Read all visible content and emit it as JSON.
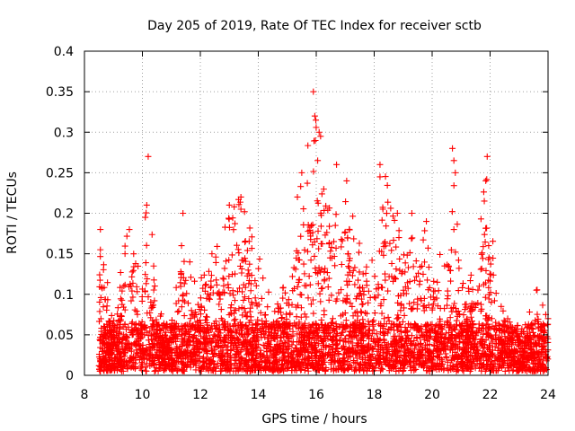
{
  "chart_data": {
    "type": "scatter",
    "title": "Day 205 of 2019, Rate Of TEC Index for receiver sctb",
    "xlabel": "GPS time / hours",
    "ylabel": "ROTI / TECUs",
    "xlim": [
      8,
      24
    ],
    "ylim": [
      0,
      0.4
    ],
    "xticks": [
      8,
      10,
      12,
      14,
      16,
      18,
      20,
      22,
      24
    ],
    "yticks": [
      0,
      0.05,
      0.1,
      0.15,
      0.2,
      0.25,
      0.3,
      0.35,
      0.4
    ],
    "grid": true,
    "marker": "plus",
    "color": "#ff0000",
    "series": [
      {
        "name": "ROTI",
        "envelope": [
          {
            "x": 8.5,
            "ymax": 0.18
          },
          {
            "x": 9.0,
            "ymax": 0.07
          },
          {
            "x": 9.3,
            "ymax": 0.15
          },
          {
            "x": 9.5,
            "ymax": 0.18
          },
          {
            "x": 10.0,
            "ymax": 0.13
          },
          {
            "x": 10.2,
            "ymax": 0.27
          },
          {
            "x": 10.5,
            "ymax": 0.08
          },
          {
            "x": 11.0,
            "ymax": 0.07
          },
          {
            "x": 11.4,
            "ymax": 0.2
          },
          {
            "x": 11.8,
            "ymax": 0.12
          },
          {
            "x": 12.0,
            "ymax": 0.12
          },
          {
            "x": 12.4,
            "ymax": 0.15
          },
          {
            "x": 13.0,
            "ymax": 0.21
          },
          {
            "x": 13.4,
            "ymax": 0.22
          },
          {
            "x": 14.0,
            "ymax": 0.15
          },
          {
            "x": 14.5,
            "ymax": 0.1
          },
          {
            "x": 15.0,
            "ymax": 0.12
          },
          {
            "x": 15.4,
            "ymax": 0.25
          },
          {
            "x": 15.9,
            "ymax": 0.35
          },
          {
            "x": 16.2,
            "ymax": 0.3
          },
          {
            "x": 16.6,
            "ymax": 0.26
          },
          {
            "x": 17.0,
            "ymax": 0.24
          },
          {
            "x": 17.5,
            "ymax": 0.17
          },
          {
            "x": 18.0,
            "ymax": 0.19
          },
          {
            "x": 18.3,
            "ymax": 0.26
          },
          {
            "x": 18.8,
            "ymax": 0.2
          },
          {
            "x": 19.3,
            "ymax": 0.2
          },
          {
            "x": 19.8,
            "ymax": 0.19
          },
          {
            "x": 20.2,
            "ymax": 0.14
          },
          {
            "x": 20.7,
            "ymax": 0.28
          },
          {
            "x": 21.0,
            "ymax": 0.12
          },
          {
            "x": 21.5,
            "ymax": 0.13
          },
          {
            "x": 21.9,
            "ymax": 0.27
          },
          {
            "x": 22.3,
            "ymax": 0.1
          },
          {
            "x": 22.8,
            "ymax": 0.08
          },
          {
            "x": 23.3,
            "ymax": 0.07
          },
          {
            "x": 23.6,
            "ymax": 0.11
          },
          {
            "x": 24.0,
            "ymax": 0.07
          }
        ],
        "baseline": {
          "ymin": 0.005,
          "typical": 0.04
        },
        "notable_points": [
          {
            "x": 8.55,
            "y": 0.18
          },
          {
            "x": 8.55,
            "y": 0.155
          },
          {
            "x": 9.55,
            "y": 0.18
          },
          {
            "x": 9.4,
            "y": 0.15
          },
          {
            "x": 10.2,
            "y": 0.27
          },
          {
            "x": 10.15,
            "y": 0.21
          },
          {
            "x": 10.1,
            "y": 0.195
          },
          {
            "x": 11.4,
            "y": 0.2
          },
          {
            "x": 11.35,
            "y": 0.16
          },
          {
            "x": 12.4,
            "y": 0.15
          },
          {
            "x": 13.0,
            "y": 0.21
          },
          {
            "x": 13.4,
            "y": 0.22
          },
          {
            "x": 13.4,
            "y": 0.205
          },
          {
            "x": 15.35,
            "y": 0.22
          },
          {
            "x": 15.5,
            "y": 0.25
          },
          {
            "x": 15.9,
            "y": 0.35
          },
          {
            "x": 15.95,
            "y": 0.32
          },
          {
            "x": 16.1,
            "y": 0.3
          },
          {
            "x": 16.15,
            "y": 0.295
          },
          {
            "x": 16.05,
            "y": 0.265
          },
          {
            "x": 16.7,
            "y": 0.26
          },
          {
            "x": 17.05,
            "y": 0.24
          },
          {
            "x": 18.2,
            "y": 0.26
          },
          {
            "x": 18.2,
            "y": 0.245
          },
          {
            "x": 18.3,
            "y": 0.205
          },
          {
            "x": 18.8,
            "y": 0.2
          },
          {
            "x": 19.3,
            "y": 0.2
          },
          {
            "x": 19.8,
            "y": 0.19
          },
          {
            "x": 20.7,
            "y": 0.28
          },
          {
            "x": 20.75,
            "y": 0.265
          },
          {
            "x": 20.8,
            "y": 0.25
          },
          {
            "x": 20.75,
            "y": 0.18
          },
          {
            "x": 21.9,
            "y": 0.27
          },
          {
            "x": 21.85,
            "y": 0.24
          },
          {
            "x": 21.8,
            "y": 0.215
          },
          {
            "x": 21.95,
            "y": 0.16
          },
          {
            "x": 23.6,
            "y": 0.105
          },
          {
            "x": 24.0,
            "y": 0.07
          }
        ]
      }
    ]
  }
}
